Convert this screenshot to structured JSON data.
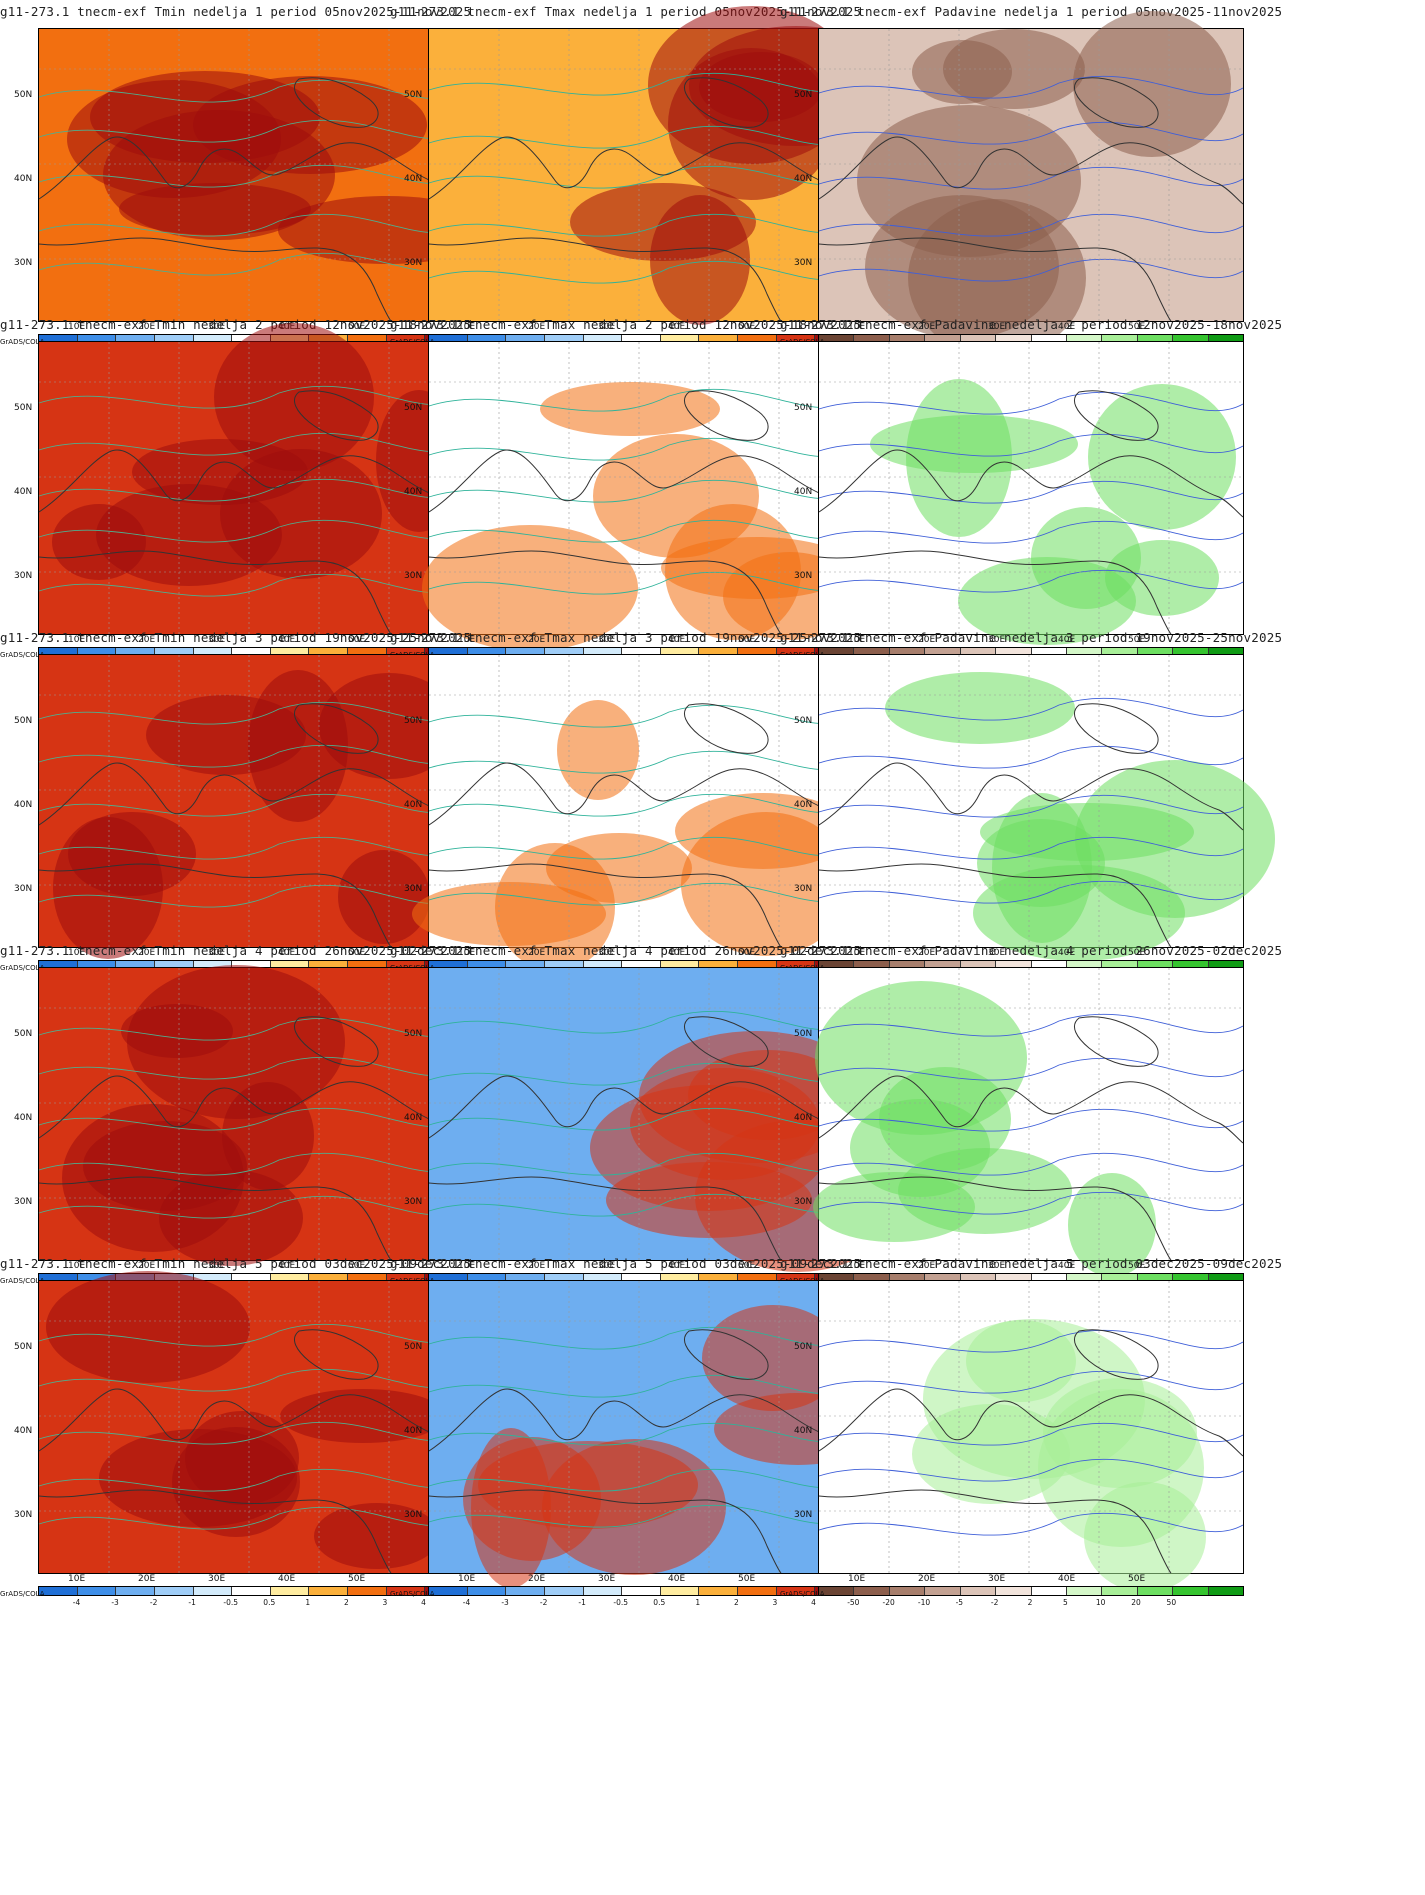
{
  "software": "GrADS/COLA",
  "lat_labels": [
    "50N",
    "40N",
    "30N"
  ],
  "lon_labels": [
    "10E",
    "20E",
    "30E",
    "40E",
    "50E"
  ],
  "legends": {
    "temp": {
      "labels": [
        "-4",
        "-3",
        "-2",
        "-1",
        "-0.5",
        "0.5",
        "1",
        "2",
        "3",
        "4"
      ],
      "colors": [
        "#1f6fd6",
        "#3e8ee8",
        "#6eaef0",
        "#9fcdf7",
        "#d3ebfb",
        "#ffffff",
        "#ffeca0",
        "#fbb03b",
        "#f26f10",
        "#d63414",
        "#9e0d0d"
      ]
    },
    "precip": {
      "labels": [
        "-50",
        "-20",
        "-10",
        "-5",
        "-2",
        "2",
        "5",
        "10",
        "20",
        "50"
      ],
      "colors": [
        "#6b4434",
        "#8c5e4c",
        "#a77e6c",
        "#c3a192",
        "#dcc4b8",
        "#f2e4dc",
        "#ffffff",
        "#d4f7c8",
        "#a8ef98",
        "#6ddf61",
        "#35c42f",
        "#0f9b14"
      ]
    }
  },
  "rows": [
    {
      "tmin": "g11-273.1 tnecm-exf Tmin nedelja 1 period 05nov2025-11nov2025",
      "tmax": "g11-273.1 tnecm-exf Tmax nedelja 1 period 05nov2025-11nov2025",
      "prec": "g11-273.1 tnecm-exf Padavine nedelja 1 period 05nov2025-11nov2025"
    },
    {
      "tmin": "g11-273.1 tnecm-exf Tmin nedelja 2 period 12nov2025-18nov2025",
      "tmax": "g11-273.1 tnecm-exf Tmax nedelja 2 period 12nov2025-18nov2025",
      "prec": "g11-273.1 tnecm-exf Padavine nedelja 2 period 12nov2025-18nov2025"
    },
    {
      "tmin": "g11-273.1 tnecm-exf Tmin nedelja 3 period 19nov2025-25nov2025",
      "tmax": "g11-273.1 tnecm-exf Tmax nedelja 3 period 19nov2025-25nov2025",
      "prec": "g11-273.1 tnecm-exf Padavine nedelja 3 period 19nov2025-25nov2025"
    },
    {
      "tmin": "g11-273.1 tnecm-exf Tmin nedelja 4 period 26nov2025-02dec2025",
      "tmax": "g11-273.1 tnecm-exf Tmax nedelja 4 period 26nov2025-02dec2025",
      "prec": "g11-273.1 tnecm-exf Padavine nedelja 4 period 26nov2025-02dec2025"
    },
    {
      "tmin": "g11-273.1 tnecm-exf Tmin nedelja 5 period 03dec2025-09dec2025",
      "tmax": "g11-273.1 tnecm-exf Tmax nedelja 5 period 03dec2025-09dec2025",
      "prec": "g11-273.1 tnecm-exf Padavine nedelja 5 period 03dec2025-09dec2025"
    }
  ],
  "panel_fill": {
    "tmin": [
      "#f26f10",
      "#d63414",
      "#d63414",
      "#d63414",
      "#d63414"
    ],
    "tmax": [
      "#fbb03b",
      "#ffffff",
      "#ffffff",
      "#6eaef0",
      "#6eaef0"
    ],
    "prec": [
      "#dcc4b8",
      "#ffffff",
      "#ffffff",
      "#ffffff",
      "#ffffff"
    ]
  },
  "panel_accent": {
    "tmin": [
      "#9e0d0d",
      "#9e0d0d",
      "#9e0d0d",
      "#9e0d0d",
      "#9e0d0d"
    ],
    "tmax": [
      "#9e0d0d",
      "#f26f10",
      "#f26f10",
      "#d63414",
      "#d63414"
    ],
    "prec": [
      "#8c5e4c",
      "#6ddf61",
      "#6ddf61",
      "#6ddf61",
      "#a8ef98"
    ]
  },
  "contour_colors": {
    "tmin": "#4fae8e",
    "tmax": "#2fb39a",
    "prec": "#3f5fd8"
  }
}
